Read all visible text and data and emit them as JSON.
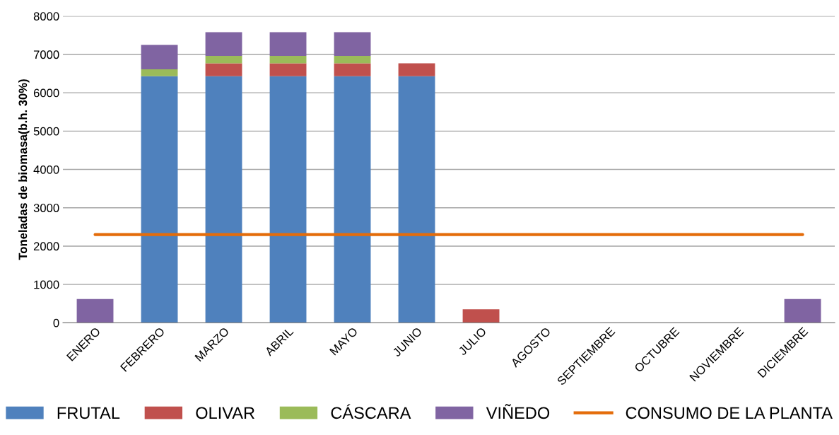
{
  "chart_data": {
    "type": "bar",
    "stacked": true,
    "ylabel": "Toneladas de biomasa(b.h. 30%)",
    "categories": [
      "ENERO",
      "FEBRERO",
      "MARZO",
      "ABRIL",
      "MAYO",
      "JUNIO",
      "JULIO",
      "AGOSTO",
      "SEPTIEMBRE",
      "OCTUBRE",
      "NOVIEMBRE",
      "DICIEMBRE"
    ],
    "series": [
      {
        "name": "FRUTAL",
        "color": "#4f81bd",
        "values": [
          0,
          6430,
          6430,
          6430,
          6430,
          6430,
          0,
          0,
          0,
          0,
          0,
          0
        ]
      },
      {
        "name": "OLIVAR",
        "color": "#c0504d",
        "values": [
          0,
          0,
          340,
          340,
          340,
          340,
          350,
          0,
          0,
          0,
          0,
          0
        ]
      },
      {
        "name": "CÁSCARA",
        "color": "#9bbb59",
        "values": [
          0,
          180,
          190,
          190,
          190,
          0,
          0,
          0,
          0,
          0,
          0,
          0
        ]
      },
      {
        "name": "VIÑEDO",
        "color": "#8064a2",
        "values": [
          620,
          640,
          620,
          620,
          620,
          0,
          0,
          0,
          0,
          0,
          0,
          620
        ]
      },
      {
        "name": "CONSUMO DE LA PLANTA",
        "type": "line",
        "color": "#e46c0a",
        "values": [
          2300,
          2300,
          2300,
          2300,
          2300,
          2300,
          2300,
          2300,
          2300,
          2300,
          2300,
          2300
        ]
      }
    ],
    "ylim": [
      0,
      8000
    ],
    "yticks": [
      0,
      1000,
      2000,
      3000,
      4000,
      5000,
      6000,
      7000,
      8000
    ],
    "grid": "y",
    "legend": "bottom"
  }
}
